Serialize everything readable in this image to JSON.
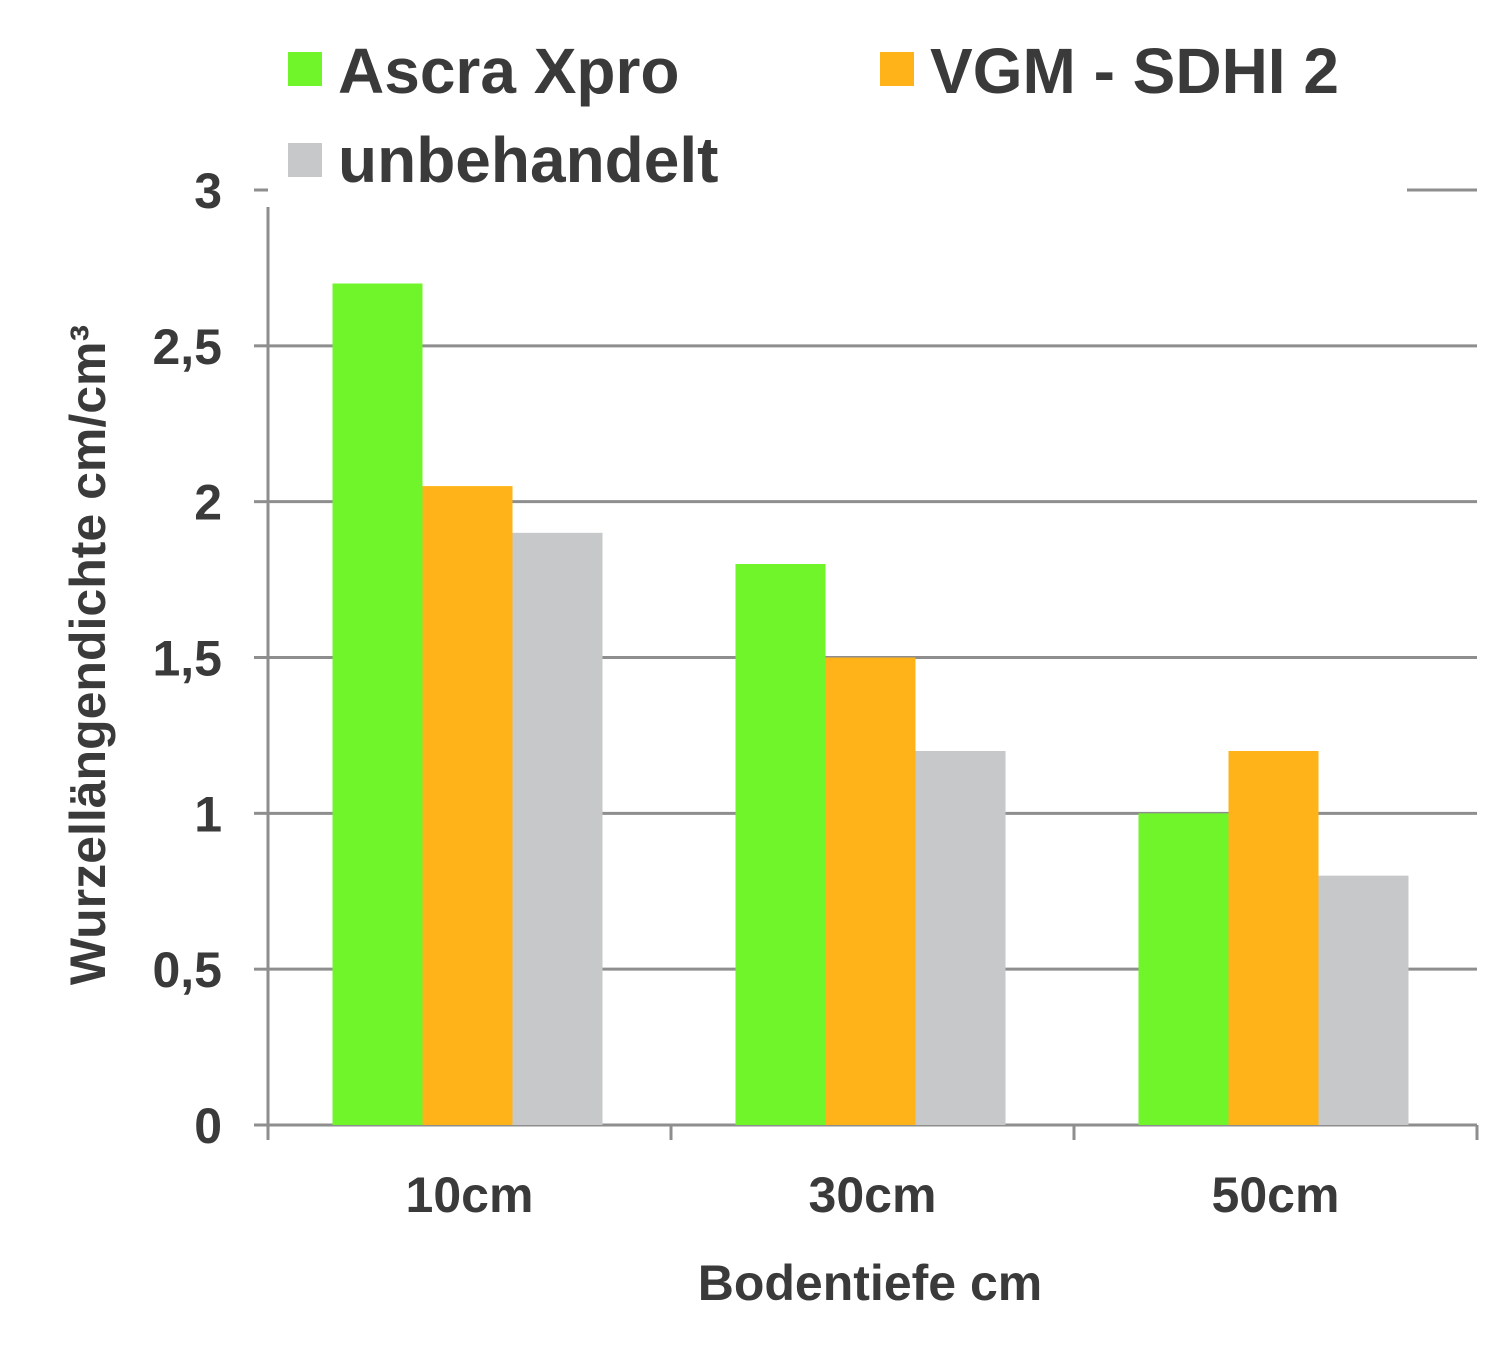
{
  "chart_data": {
    "type": "bar",
    "categories": [
      "10cm",
      "30cm",
      "50cm"
    ],
    "series": [
      {
        "name": "Ascra Xpro",
        "values": [
          2.7,
          1.8,
          1.0
        ],
        "color": "#6FF52A"
      },
      {
        "name": "VGM - SDHI 2",
        "values": [
          2.05,
          1.5,
          1.2
        ],
        "color": "#FFB319"
      },
      {
        "name": "unbehandelt",
        "values": [
          1.9,
          1.2,
          0.8
        ],
        "color": "#C6C8C9"
      }
    ],
    "yticks": [
      "0",
      "0,5",
      "1",
      "1,5",
      "2",
      "2,5",
      "3"
    ],
    "ylim": [
      0,
      3
    ],
    "xlabel": "Bodentiefe cm",
    "ylabel": "Wurzellängendichte cm/cm³",
    "grid": true,
    "legend_position": "top"
  }
}
